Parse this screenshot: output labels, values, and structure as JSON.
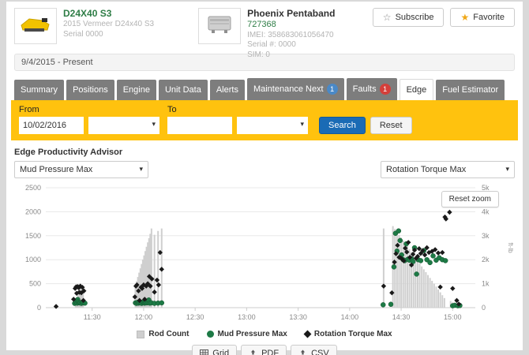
{
  "icons": {
    "caret": "▾",
    "star_outline": "☆",
    "star_filled": "★"
  },
  "header": {
    "machine": {
      "title": "D24X40 S3",
      "subtitle": "2015 Vermeer D24x40 S3",
      "serial": "Serial 0000"
    },
    "device": {
      "title": "Phoenix Pentaband",
      "id": "727368",
      "imei": "IMEI: 358683061056470",
      "serial": "Serial #: 0000",
      "sim": "SIM: 0"
    },
    "subscribe_label": "Subscribe",
    "favorite_label": "Favorite"
  },
  "date_range": "9/4/2015 - Present",
  "tabs": {
    "items": [
      {
        "label": "Summary"
      },
      {
        "label": "Positions"
      },
      {
        "label": "Engine"
      },
      {
        "label": "Unit Data"
      },
      {
        "label": "Alerts"
      },
      {
        "label": "Maintenance Next",
        "badge": "1",
        "badge_color": "#4a89c7"
      },
      {
        "label": "Faults",
        "badge": "1",
        "badge_color": "#d43f3a"
      },
      {
        "label": "Edge",
        "active": true
      },
      {
        "label": "Fuel Estimator"
      }
    ]
  },
  "filter": {
    "from_label": "From",
    "to_label": "To",
    "from_value": "10/02/2016",
    "to_value": "",
    "search_label": "Search",
    "reset_label": "Reset"
  },
  "advisor": {
    "title": "Edge Productivity Advisor",
    "left_select": "Mud Pressure Max",
    "right_select": "Rotation Torque Max"
  },
  "chart": {
    "reset_zoom_label": "Reset zoom"
  },
  "chart_data": {
    "type": "scatter",
    "x_axis": {
      "domain": [
        11.05,
        15.22
      ],
      "ticks": [
        {
          "label": "11:30",
          "t": 11.5
        },
        {
          "label": "12:00",
          "t": 12.0
        },
        {
          "label": "12:30",
          "t": 12.5
        },
        {
          "label": "13:00",
          "t": 13.0
        },
        {
          "label": "13:30",
          "t": 13.5
        },
        {
          "label": "14:00",
          "t": 14.0
        },
        {
          "label": "14:30",
          "t": 14.5
        },
        {
          "label": "15:00",
          "t": 15.0
        }
      ]
    },
    "y_left": {
      "range": [
        0,
        2500
      ],
      "ticks": [
        {
          "label": "0",
          "v": 0
        },
        {
          "label": "500",
          "v": 500
        },
        {
          "label": "1000",
          "v": 1000
        },
        {
          "label": "1500",
          "v": 1500
        },
        {
          "label": "2000",
          "v": 2000
        },
        {
          "label": "2500",
          "v": 2500
        }
      ]
    },
    "y_right": {
      "range": [
        0,
        5000
      ],
      "label": "ft-lb",
      "ticks": [
        {
          "label": "0",
          "v": 0
        },
        {
          "label": "1k",
          "v": 1000
        },
        {
          "label": "2k",
          "v": 2000
        },
        {
          "label": "3k",
          "v": 3000
        },
        {
          "label": "4k",
          "v": 4000
        },
        {
          "label": "5k",
          "v": 5000
        }
      ]
    },
    "legend": [
      {
        "label": "Rod Count",
        "marker": "square",
        "color": "#cfcfcf"
      },
      {
        "label": "Mud Pressure Max",
        "marker": "circle",
        "color": "#1d7a46"
      },
      {
        "label": "Rotation Torque Max",
        "marker": "diamond",
        "color": "#1a1a1a"
      }
    ],
    "series": {
      "rod_count": [
        [
          11.34,
          140
        ],
        [
          11.352,
          210
        ],
        [
          11.364,
          260
        ],
        [
          11.376,
          330
        ],
        [
          11.388,
          500
        ],
        [
          11.4,
          430
        ],
        [
          11.412,
          300
        ],
        [
          11.92,
          450
        ],
        [
          11.932,
          550
        ],
        [
          11.944,
          640
        ],
        [
          11.956,
          730
        ],
        [
          11.968,
          820
        ],
        [
          11.98,
          910
        ],
        [
          11.992,
          1000
        ],
        [
          12.004,
          1090
        ],
        [
          12.016,
          1180
        ],
        [
          12.028,
          1270
        ],
        [
          12.04,
          1360
        ],
        [
          12.052,
          1450
        ],
        [
          12.064,
          1540
        ],
        [
          12.076,
          1650
        ],
        [
          12.105,
          1520
        ],
        [
          12.14,
          1600
        ],
        [
          12.175,
          1650
        ],
        [
          14.33,
          1650
        ],
        [
          14.42,
          1700
        ],
        [
          14.44,
          1640
        ],
        [
          14.46,
          1580
        ],
        [
          14.48,
          1520
        ],
        [
          14.5,
          1460
        ],
        [
          14.52,
          1400
        ],
        [
          14.54,
          1340
        ],
        [
          14.56,
          1280
        ],
        [
          14.58,
          1220
        ],
        [
          14.6,
          1160
        ],
        [
          14.62,
          1100
        ],
        [
          14.64,
          1040
        ],
        [
          14.66,
          980
        ],
        [
          14.68,
          920
        ],
        [
          14.7,
          860
        ],
        [
          14.72,
          800
        ],
        [
          14.74,
          740
        ],
        [
          14.76,
          680
        ],
        [
          14.78,
          620
        ],
        [
          14.8,
          560
        ],
        [
          14.82,
          500
        ],
        [
          14.84,
          440
        ],
        [
          14.86,
          380
        ],
        [
          14.88,
          320
        ],
        [
          14.9,
          260
        ],
        [
          14.92,
          200
        ],
        [
          14.98,
          140
        ],
        [
          15.0,
          110
        ],
        [
          15.02,
          80
        ]
      ],
      "mud_pressure_max": [
        [
          11.33,
          90
        ],
        [
          11.345,
          110
        ],
        [
          11.355,
          95
        ],
        [
          11.36,
          170
        ],
        [
          11.365,
          120
        ],
        [
          11.375,
          100
        ],
        [
          11.385,
          105
        ],
        [
          11.395,
          90
        ],
        [
          11.405,
          115
        ],
        [
          11.415,
          100
        ],
        [
          11.43,
          95
        ],
        [
          11.92,
          100
        ],
        [
          11.93,
          90
        ],
        [
          11.94,
          110
        ],
        [
          11.95,
          95
        ],
        [
          11.96,
          105
        ],
        [
          11.97,
          100
        ],
        [
          11.98,
          90
        ],
        [
          11.99,
          115
        ],
        [
          12.0,
          100
        ],
        [
          12.01,
          95
        ],
        [
          12.02,
          110
        ],
        [
          12.03,
          100
        ],
        [
          12.045,
          105
        ],
        [
          12.05,
          160
        ],
        [
          12.06,
          95
        ],
        [
          12.075,
          100
        ],
        [
          12.105,
          90
        ],
        [
          12.14,
          95
        ],
        [
          12.175,
          100
        ],
        [
          14.325,
          60
        ],
        [
          14.4,
          70
        ],
        [
          14.43,
          850
        ],
        [
          14.445,
          1550
        ],
        [
          14.46,
          1180
        ],
        [
          14.475,
          1600
        ],
        [
          14.49,
          1400
        ],
        [
          14.505,
          1100
        ],
        [
          14.52,
          1000
        ],
        [
          14.535,
          980
        ],
        [
          14.55,
          1330
        ],
        [
          14.565,
          1010
        ],
        [
          14.58,
          990
        ],
        [
          14.6,
          1020
        ],
        [
          14.615,
          960
        ],
        [
          14.63,
          1250
        ],
        [
          14.65,
          700
        ],
        [
          14.665,
          1000
        ],
        [
          14.69,
          980
        ],
        [
          14.72,
          1190
        ],
        [
          14.75,
          1000
        ],
        [
          14.78,
          940
        ],
        [
          14.81,
          1080
        ],
        [
          14.84,
          990
        ],
        [
          14.87,
          1040
        ],
        [
          14.9,
          1000
        ],
        [
          14.93,
          980
        ],
        [
          15.0,
          40
        ],
        [
          15.02,
          50
        ],
        [
          15.05,
          40
        ],
        [
          15.07,
          45
        ]
      ],
      "rotation_torque_max": [
        [
          11.15,
          50
        ],
        [
          11.32,
          350
        ],
        [
          11.335,
          800
        ],
        [
          11.345,
          870
        ],
        [
          11.35,
          600
        ],
        [
          11.36,
          880
        ],
        [
          11.37,
          830
        ],
        [
          11.375,
          640
        ],
        [
          11.385,
          900
        ],
        [
          11.395,
          620
        ],
        [
          11.405,
          850
        ],
        [
          11.415,
          300
        ],
        [
          11.42,
          700
        ],
        [
          11.915,
          450
        ],
        [
          11.925,
          900
        ],
        [
          11.935,
          950
        ],
        [
          11.95,
          700
        ],
        [
          11.96,
          300
        ],
        [
          11.975,
          850
        ],
        [
          11.985,
          800
        ],
        [
          12.0,
          950
        ],
        [
          12.01,
          350
        ],
        [
          12.025,
          900
        ],
        [
          12.04,
          1000
        ],
        [
          12.055,
          1300
        ],
        [
          12.065,
          900
        ],
        [
          12.08,
          1200
        ],
        [
          12.105,
          650
        ],
        [
          12.13,
          1150
        ],
        [
          12.145,
          950
        ],
        [
          12.16,
          2300
        ],
        [
          12.175,
          1600
        ],
        [
          14.33,
          900
        ],
        [
          14.41,
          620
        ],
        [
          14.435,
          1900
        ],
        [
          14.45,
          2250
        ],
        [
          14.465,
          2600
        ],
        [
          14.48,
          2100
        ],
        [
          14.495,
          2080
        ],
        [
          14.51,
          2020
        ],
        [
          14.525,
          1950
        ],
        [
          14.54,
          2480
        ],
        [
          14.555,
          2320
        ],
        [
          14.57,
          2720
        ],
        [
          14.585,
          2100
        ],
        [
          14.6,
          1780
        ],
        [
          14.615,
          2230
        ],
        [
          14.63,
          2400
        ],
        [
          14.645,
          2060
        ],
        [
          14.66,
          2140
        ],
        [
          14.675,
          2460
        ],
        [
          14.69,
          2260
        ],
        [
          14.71,
          2380
        ],
        [
          14.73,
          2200
        ],
        [
          14.75,
          2500
        ],
        [
          14.77,
          2300
        ],
        [
          14.8,
          2350
        ],
        [
          14.83,
          2420
        ],
        [
          14.86,
          2280
        ],
        [
          14.88,
          860
        ],
        [
          14.9,
          2300
        ],
        [
          14.925,
          3780
        ],
        [
          14.935,
          3700
        ],
        [
          14.97,
          3980
        ],
        [
          15.0,
          800
        ],
        [
          15.04,
          300
        ],
        [
          15.06,
          150
        ]
      ]
    }
  },
  "footer": {
    "grid_label": "Grid",
    "pdf_label": "PDF",
    "csv_label": "CSV"
  }
}
